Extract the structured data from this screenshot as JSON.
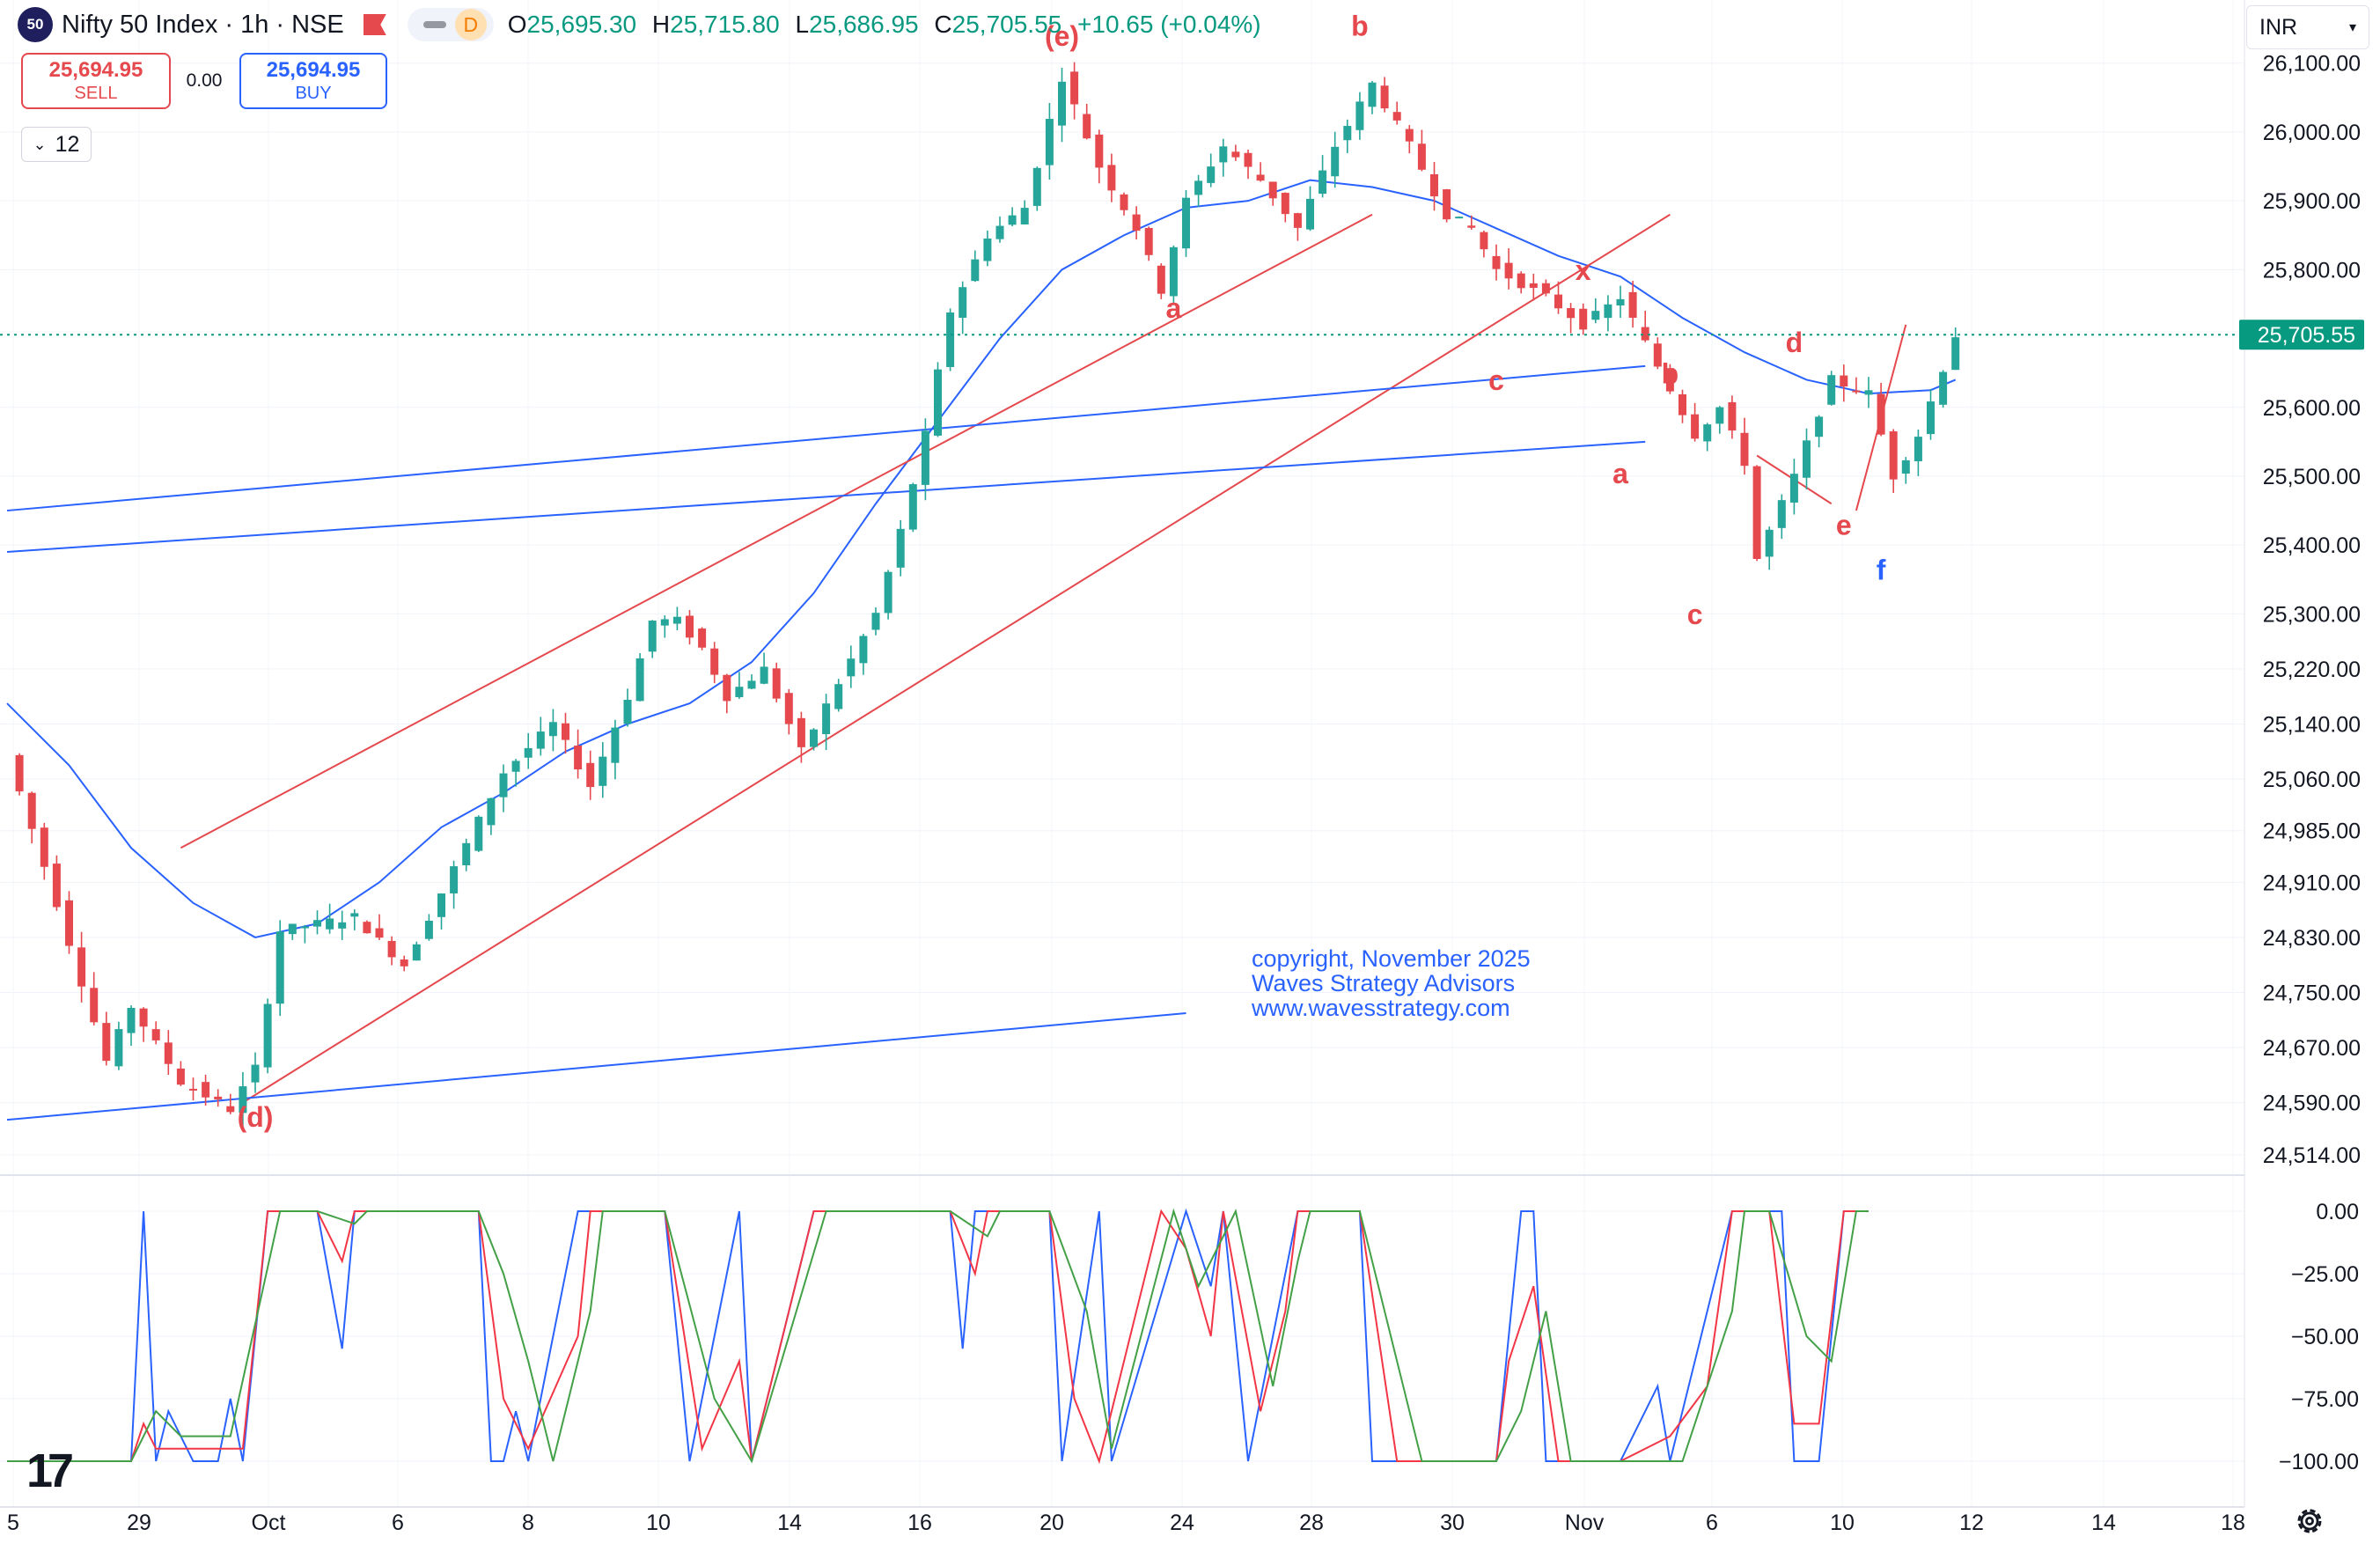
{
  "header": {
    "symbol_badge": "50",
    "title": "Nifty 50 Index · 1h · NSE",
    "flag_icon": "flag-icon",
    "pill_label": "D",
    "ohlc": {
      "o_label": "O",
      "o": "25,695.30",
      "h_label": "H",
      "h": "25,715.80",
      "l_label": "L",
      "l": "25,686.95",
      "c_label": "C",
      "c": "25,705.55",
      "change": "+10.65 (+0.04%)"
    }
  },
  "trade": {
    "sell_price": "25,694.95",
    "sell_label": "SELL",
    "spread": "0.00",
    "buy_price": "25,694.95",
    "buy_label": "BUY"
  },
  "interval": "12",
  "currency": "INR",
  "copyright": [
    "copyright, November 2025",
    "Waves Strategy Advisors",
    "www.wavesstrategy.com"
  ],
  "logo": "17",
  "colors": {
    "up": "#26a69a",
    "down": "#e5484d",
    "ma": "#2962ff",
    "trend_red": "#e5484d",
    "trend_blue": "#2962ff",
    "osc_blue": "#2962ff",
    "osc_red": "#f23645",
    "osc_green": "#43a047",
    "last_price_bg": "#089981"
  },
  "chart_data": [
    {
      "type": "candlestick",
      "symbol": "Nifty 50 Index",
      "interval": "1h",
      "x_ticks": [
        "5",
        "29",
        "Oct",
        "6",
        "8",
        "10",
        "14",
        "16",
        "20",
        "24",
        "28",
        "30",
        "Nov",
        "6",
        "10",
        "12",
        "14",
        "18"
      ],
      "y_ticks": [
        "26,100.00",
        "26,000.00",
        "25,900.00",
        "25,800.00",
        "25,600.00",
        "25,500.00",
        "25,400.00",
        "25,300.00",
        "25,220.00",
        "25,140.00",
        "25,060.00",
        "24,985.00",
        "24,910.00",
        "24,830.00",
        "24,750.00",
        "24,670.00",
        "24,590.00",
        "24,514.00"
      ],
      "ylim": [
        24500,
        26115
      ],
      "last_price": "25,705.55",
      "path": [
        [
          0,
          25095
        ],
        [
          4,
          24880
        ],
        [
          8,
          24650
        ],
        [
          10,
          24730
        ],
        [
          14,
          24620
        ],
        [
          18,
          24580
        ],
        [
          20,
          24640
        ],
        [
          22,
          24840
        ],
        [
          28,
          24860
        ],
        [
          32,
          24790
        ],
        [
          36,
          24930
        ],
        [
          40,
          25070
        ],
        [
          44,
          25140
        ],
        [
          47,
          25050
        ],
        [
          50,
          25180
        ],
        [
          52,
          25290
        ],
        [
          54,
          25290
        ],
        [
          56,
          25250
        ],
        [
          58,
          25180
        ],
        [
          61,
          25220
        ],
        [
          64,
          25100
        ],
        [
          67,
          25200
        ],
        [
          70,
          25300
        ],
        [
          72,
          25420
        ],
        [
          74,
          25560
        ],
        [
          76,
          25740
        ],
        [
          79,
          25850
        ],
        [
          82,
          25890
        ],
        [
          85,
          26080
        ],
        [
          88,
          25950
        ],
        [
          91,
          25860
        ],
        [
          93,
          25770
        ],
        [
          95,
          25900
        ],
        [
          98,
          25980
        ],
        [
          101,
          25930
        ],
        [
          104,
          25860
        ],
        [
          107,
          25980
        ],
        [
          110,
          26070
        ],
        [
          113,
          25980
        ],
        [
          116,
          25880
        ],
        [
          118,
          25860
        ],
        [
          120,
          25800
        ],
        [
          124,
          25760
        ],
        [
          127,
          25720
        ],
        [
          130,
          25760
        ],
        [
          133,
          25660
        ],
        [
          136,
          25560
        ],
        [
          138,
          25600
        ],
        [
          140,
          25520
        ],
        [
          141,
          25380
        ],
        [
          144,
          25500
        ],
        [
          147,
          25640
        ],
        [
          150,
          25620
        ],
        [
          152,
          25500
        ],
        [
          154,
          25560
        ],
        [
          157,
          25705
        ]
      ],
      "moving_average": [
        [
          0,
          25170
        ],
        [
          5,
          25080
        ],
        [
          10,
          24960
        ],
        [
          15,
          24880
        ],
        [
          20,
          24830
        ],
        [
          25,
          24850
        ],
        [
          30,
          24910
        ],
        [
          35,
          24990
        ],
        [
          40,
          25040
        ],
        [
          45,
          25100
        ],
        [
          50,
          25140
        ],
        [
          55,
          25170
        ],
        [
          60,
          25230
        ],
        [
          65,
          25330
        ],
        [
          70,
          25460
        ],
        [
          75,
          25580
        ],
        [
          80,
          25700
        ],
        [
          85,
          25800
        ],
        [
          90,
          25850
        ],
        [
          95,
          25890
        ],
        [
          100,
          25900
        ],
        [
          105,
          25930
        ],
        [
          110,
          25920
        ],
        [
          115,
          25900
        ],
        [
          120,
          25860
        ],
        [
          125,
          25820
        ],
        [
          130,
          25790
        ],
        [
          135,
          25730
        ],
        [
          140,
          25680
        ],
        [
          145,
          25640
        ],
        [
          150,
          25620
        ],
        [
          155,
          25625
        ],
        [
          157,
          25640
        ]
      ],
      "trendlines": [
        {
          "color": "red",
          "points": [
            [
              14,
              24960
            ],
            [
              110,
              25880
            ]
          ]
        },
        {
          "color": "red",
          "points": [
            [
              19,
              24590
            ],
            [
              134,
              25880
            ]
          ]
        },
        {
          "color": "red",
          "points": [
            [
              141,
              25530
            ],
            [
              147,
              25460
            ]
          ]
        },
        {
          "color": "red",
          "points": [
            [
              149,
              25450
            ],
            [
              153,
              25720
            ]
          ]
        },
        {
          "color": "blue",
          "points": [
            [
              0,
              25450
            ],
            [
              132,
              25660
            ]
          ]
        },
        {
          "color": "blue",
          "points": [
            [
              0,
              25390
            ],
            [
              132,
              25550
            ]
          ]
        },
        {
          "color": "blue",
          "points": [
            [
              0,
              24565
            ],
            [
              95,
              24720
            ]
          ]
        }
      ],
      "wave_labels": [
        {
          "text": "(e)",
          "x": 85,
          "y": 26125,
          "color": "red"
        },
        {
          "text": "b",
          "x": 109,
          "y": 26140,
          "color": "red"
        },
        {
          "text": "a",
          "x": 94,
          "y": 25730,
          "color": "red"
        },
        {
          "text": "x",
          "x": 127,
          "y": 25785,
          "color": "red"
        },
        {
          "text": "c",
          "x": 120,
          "y": 25625,
          "color": "red"
        },
        {
          "text": "b",
          "x": 134,
          "y": 25635,
          "color": "red"
        },
        {
          "text": "a",
          "x": 130,
          "y": 25490,
          "color": "red"
        },
        {
          "text": "c",
          "x": 136,
          "y": 25285,
          "color": "red"
        },
        {
          "text": "d",
          "x": 144,
          "y": 25680,
          "color": "red"
        },
        {
          "text": "e",
          "x": 148,
          "y": 25415,
          "color": "red"
        },
        {
          "text": "f",
          "x": 151,
          "y": 25350,
          "color": "blue"
        },
        {
          "text": "(d)",
          "x": 20,
          "y": 24555,
          "color": "red"
        }
      ]
    },
    {
      "type": "line",
      "name": "oscillator",
      "y_ticks": [
        "0.00",
        "−25.00",
        "−50.00",
        "−75.00",
        "−100.00"
      ],
      "ylim": [
        -100,
        0
      ],
      "series": [
        {
          "color": "blue",
          "values": [
            [
              0,
              -100
            ],
            [
              10,
              -100
            ],
            [
              11,
              0
            ],
            [
              12,
              -100
            ],
            [
              13,
              -80
            ],
            [
              15,
              -100
            ],
            [
              17,
              -100
            ],
            [
              18,
              -75
            ],
            [
              19,
              -100
            ],
            [
              21,
              0
            ],
            [
              25,
              0
            ],
            [
              27,
              -55
            ],
            [
              28,
              0
            ],
            [
              38,
              0
            ],
            [
              39,
              -100
            ],
            [
              40,
              -100
            ],
            [
              41,
              -80
            ],
            [
              42,
              -100
            ],
            [
              46,
              0
            ],
            [
              53,
              0
            ],
            [
              55,
              -100
            ],
            [
              59,
              0
            ],
            [
              60,
              -100
            ],
            [
              65,
              0
            ],
            [
              76,
              0
            ],
            [
              77,
              -55
            ],
            [
              78,
              0
            ],
            [
              84,
              0
            ],
            [
              85,
              -100
            ],
            [
              88,
              0
            ],
            [
              89,
              -100
            ],
            [
              95,
              0
            ],
            [
              97,
              -30
            ],
            [
              98,
              0
            ],
            [
              100,
              -100
            ],
            [
              104,
              0
            ],
            [
              109,
              0
            ],
            [
              110,
              -100
            ],
            [
              120,
              -100
            ],
            [
              122,
              0
            ],
            [
              123,
              0
            ],
            [
              124,
              -100
            ],
            [
              130,
              -100
            ],
            [
              133,
              -70
            ],
            [
              134,
              -100
            ],
            [
              139,
              0
            ],
            [
              143,
              0
            ],
            [
              144,
              -100
            ],
            [
              146,
              -100
            ],
            [
              148,
              0
            ],
            [
              150,
              0
            ]
          ]
        },
        {
          "color": "red",
          "values": [
            [
              0,
              -100
            ],
            [
              10,
              -100
            ],
            [
              11,
              -85
            ],
            [
              12,
              -95
            ],
            [
              15,
              -95
            ],
            [
              19,
              -95
            ],
            [
              21,
              0
            ],
            [
              25,
              0
            ],
            [
              27,
              -20
            ],
            [
              28,
              0
            ],
            [
              38,
              0
            ],
            [
              40,
              -75
            ],
            [
              42,
              -95
            ],
            [
              46,
              -50
            ],
            [
              47,
              0
            ],
            [
              53,
              0
            ],
            [
              56,
              -95
            ],
            [
              59,
              -60
            ],
            [
              60,
              -100
            ],
            [
              65,
              0
            ],
            [
              76,
              0
            ],
            [
              78,
              -25
            ],
            [
              79,
              0
            ],
            [
              84,
              0
            ],
            [
              86,
              -75
            ],
            [
              88,
              -100
            ],
            [
              93,
              0
            ],
            [
              95,
              -15
            ],
            [
              97,
              -50
            ],
            [
              98,
              0
            ],
            [
              101,
              -80
            ],
            [
              103,
              -40
            ],
            [
              104,
              0
            ],
            [
              109,
              0
            ],
            [
              112,
              -100
            ],
            [
              120,
              -100
            ],
            [
              121,
              -60
            ],
            [
              123,
              -30
            ],
            [
              125,
              -100
            ],
            [
              130,
              -100
            ],
            [
              134,
              -90
            ],
            [
              137,
              -70
            ],
            [
              139,
              0
            ],
            [
              142,
              0
            ],
            [
              144,
              -85
            ],
            [
              146,
              -85
            ],
            [
              148,
              0
            ],
            [
              150,
              0
            ]
          ]
        },
        {
          "color": "green",
          "values": [
            [
              0,
              -100
            ],
            [
              10,
              -100
            ],
            [
              12,
              -80
            ],
            [
              14,
              -90
            ],
            [
              18,
              -90
            ],
            [
              22,
              0
            ],
            [
              25,
              0
            ],
            [
              28,
              -5
            ],
            [
              29,
              0
            ],
            [
              38,
              0
            ],
            [
              40,
              -25
            ],
            [
              42,
              -60
            ],
            [
              44,
              -100
            ],
            [
              47,
              -40
            ],
            [
              48,
              0
            ],
            [
              53,
              0
            ],
            [
              57,
              -75
            ],
            [
              60,
              -100
            ],
            [
              66,
              0
            ],
            [
              76,
              0
            ],
            [
              79,
              -10
            ],
            [
              80,
              0
            ],
            [
              84,
              0
            ],
            [
              87,
              -40
            ],
            [
              89,
              -95
            ],
            [
              94,
              0
            ],
            [
              96,
              -30
            ],
            [
              99,
              0
            ],
            [
              102,
              -70
            ],
            [
              104,
              -20
            ],
            [
              105,
              0
            ],
            [
              109,
              0
            ],
            [
              114,
              -100
            ],
            [
              120,
              -100
            ],
            [
              122,
              -80
            ],
            [
              124,
              -40
            ],
            [
              126,
              -100
            ],
            [
              130,
              -100
            ],
            [
              135,
              -100
            ],
            [
              139,
              -40
            ],
            [
              140,
              0
            ],
            [
              142,
              0
            ],
            [
              145,
              -50
            ],
            [
              147,
              -60
            ],
            [
              149,
              0
            ],
            [
              150,
              0
            ]
          ]
        }
      ]
    }
  ]
}
